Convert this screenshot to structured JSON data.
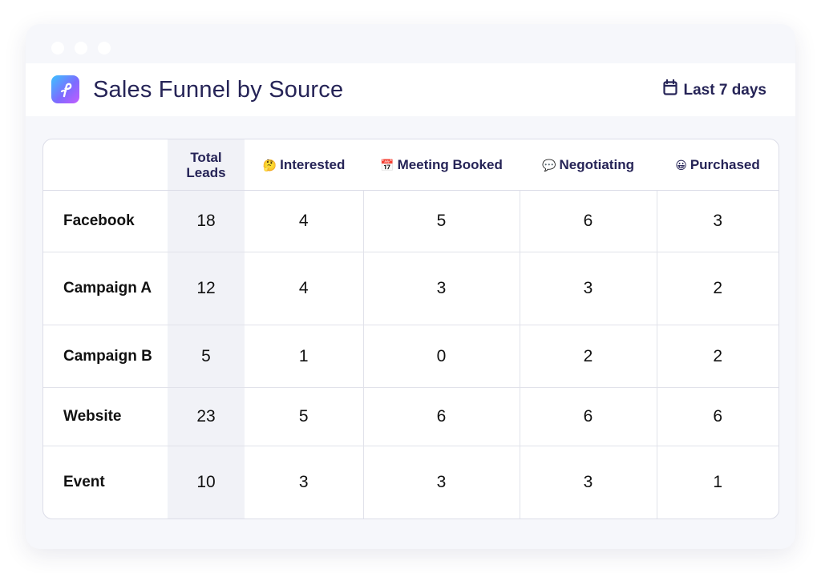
{
  "header": {
    "title": "Sales Funnel by Source",
    "date_range": "Last 7 days",
    "logo_icon": "app-logo-icon",
    "calendar_icon": "calendar-icon"
  },
  "table": {
    "columns": [
      {
        "label": "",
        "icon": ""
      },
      {
        "label": "Total Leads",
        "icon": ""
      },
      {
        "label": "Interested",
        "icon": "🤔"
      },
      {
        "label": "Meeting Booked",
        "icon": "📅"
      },
      {
        "label": "Negotiating",
        "icon": "💬"
      },
      {
        "label": "Purchased",
        "icon": "😀"
      }
    ],
    "rows": [
      {
        "source": "Facebook",
        "values": [
          "18",
          "4",
          "5",
          "6",
          "3"
        ]
      },
      {
        "source": "Campaign A",
        "values": [
          "12",
          "4",
          "3",
          "3",
          "2"
        ]
      },
      {
        "source": "Campaign B",
        "values": [
          "5",
          "1",
          "0",
          "2",
          "2"
        ]
      },
      {
        "source": "Website",
        "values": [
          "23",
          "5",
          "6",
          "6",
          "6"
        ]
      },
      {
        "source": "Event",
        "values": [
          "10",
          "3",
          "3",
          "3",
          "1"
        ]
      }
    ]
  },
  "colors": {
    "accent": "#262457",
    "total_column_bg": "#f1f2f7",
    "window_bg": "#f6f7fb"
  }
}
